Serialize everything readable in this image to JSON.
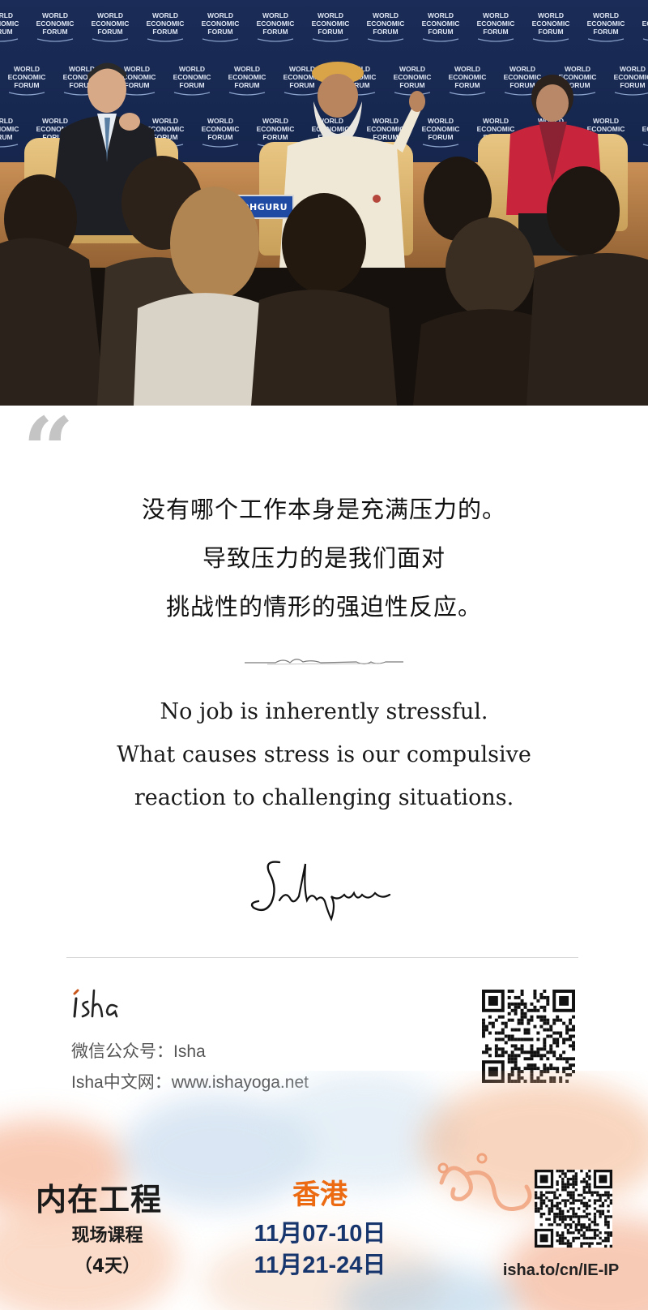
{
  "photo": {
    "backdrop_text": [
      "WORLD",
      "ECONOMIC",
      "FORUM"
    ],
    "nameplate": "SADHGURU"
  },
  "quote": {
    "zh": [
      "没有哪个工作本身是充满压力的。",
      "导致压力的是我们面对",
      "挑战性的情形的强迫性反应。"
    ],
    "en": [
      "No job is inherently stressful.",
      "What causes stress is our compulsive",
      "reaction to challenging situations."
    ]
  },
  "footer": {
    "wechat": "微信公众号：Isha",
    "website": "Isha中文网：www.ishayoga.net"
  },
  "course": {
    "title": "内在工程",
    "subtitle": "现场课程",
    "duration": "（4天）",
    "city": "香港",
    "dates": [
      "11月07-10日",
      "11月21-24日"
    ],
    "link": "isha.to/cn/IE-IP"
  },
  "colors": {
    "city": "#ec6a12",
    "dates": "#18366e",
    "quote_mark": "#c4c4c4"
  }
}
